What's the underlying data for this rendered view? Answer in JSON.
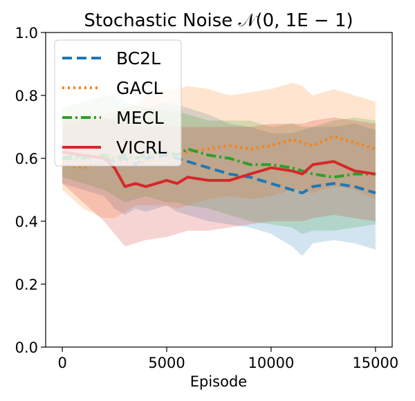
{
  "chart_data": {
    "type": "line",
    "title": "Stochastic Noise 𝒩(0, 1E − 1)",
    "xlabel": "Episode",
    "ylabel": "",
    "xlim": [
      -800,
      15800
    ],
    "ylim": [
      0.0,
      1.0
    ],
    "xticks": [
      0,
      5000,
      10000,
      15000
    ],
    "xtick_labels": [
      "0",
      "5000",
      "10000",
      "15000"
    ],
    "yticks": [
      0.0,
      0.2,
      0.4,
      0.6,
      0.8,
      1.0
    ],
    "ytick_labels": [
      "0.0",
      "0.2",
      "0.4",
      "0.6",
      "0.8",
      "1.0"
    ],
    "grid": false,
    "legend_position": "top-left",
    "x": [
      0,
      1000,
      2000,
      2500,
      3000,
      3500,
      4000,
      5000,
      5500,
      6000,
      7000,
      8000,
      9000,
      10000,
      11000,
      11500,
      12000,
      13000,
      14000,
      15000
    ],
    "series": [
      {
        "name": "BC2L",
        "color": "#1f77b4",
        "dash": "dashed",
        "values": [
          0.6,
          0.61,
          0.6,
          0.59,
          0.6,
          0.58,
          0.6,
          0.61,
          0.6,
          0.59,
          0.57,
          0.55,
          0.54,
          0.52,
          0.5,
          0.49,
          0.51,
          0.52,
          0.51,
          0.49
        ],
        "band_lower": [
          0.52,
          0.5,
          0.48,
          0.44,
          0.42,
          0.44,
          0.43,
          0.45,
          0.43,
          0.42,
          0.4,
          0.39,
          0.38,
          0.36,
          0.32,
          0.29,
          0.33,
          0.34,
          0.33,
          0.31
        ],
        "band_upper": [
          0.7,
          0.72,
          0.72,
          0.73,
          0.75,
          0.74,
          0.76,
          0.78,
          0.77,
          0.76,
          0.74,
          0.71,
          0.7,
          0.68,
          0.68,
          0.69,
          0.7,
          0.7,
          0.71,
          0.69
        ]
      },
      {
        "name": "GACL",
        "color": "#ff7f0e",
        "dash": "dotted",
        "values": [
          0.58,
          0.57,
          0.59,
          0.6,
          0.59,
          0.58,
          0.59,
          0.6,
          0.61,
          0.62,
          0.63,
          0.64,
          0.63,
          0.64,
          0.66,
          0.65,
          0.64,
          0.67,
          0.65,
          0.63
        ],
        "band_lower": [
          0.5,
          0.44,
          0.41,
          0.41,
          0.43,
          0.45,
          0.45,
          0.45,
          0.44,
          0.45,
          0.47,
          0.48,
          0.47,
          0.48,
          0.5,
          0.5,
          0.49,
          0.51,
          0.5,
          0.47
        ],
        "band_upper": [
          0.72,
          0.74,
          0.74,
          0.75,
          0.76,
          0.77,
          0.8,
          0.82,
          0.82,
          0.83,
          0.82,
          0.8,
          0.81,
          0.82,
          0.84,
          0.83,
          0.8,
          0.82,
          0.8,
          0.78
        ]
      },
      {
        "name": "MECL",
        "color": "#2ca02c",
        "dash": "dashdot",
        "values": [
          0.6,
          0.6,
          0.61,
          0.6,
          0.61,
          0.6,
          0.61,
          0.62,
          0.61,
          0.63,
          0.61,
          0.6,
          0.58,
          0.58,
          0.57,
          0.56,
          0.55,
          0.54,
          0.55,
          0.55
        ],
        "band_lower": [
          0.54,
          0.52,
          0.5,
          0.48,
          0.46,
          0.47,
          0.48,
          0.46,
          0.46,
          0.45,
          0.44,
          0.42,
          0.4,
          0.39,
          0.38,
          0.36,
          0.37,
          0.37,
          0.38,
          0.39
        ],
        "band_upper": [
          0.76,
          0.78,
          0.8,
          0.8,
          0.78,
          0.77,
          0.76,
          0.75,
          0.75,
          0.74,
          0.72,
          0.72,
          0.72,
          0.7,
          0.71,
          0.7,
          0.7,
          0.72,
          0.73,
          0.72
        ]
      },
      {
        "name": "VICRL",
        "color": "#d62728",
        "dash": "solid",
        "values": [
          0.62,
          0.61,
          0.6,
          0.57,
          0.51,
          0.52,
          0.51,
          0.53,
          0.52,
          0.54,
          0.53,
          0.53,
          0.55,
          0.57,
          0.56,
          0.55,
          0.58,
          0.59,
          0.56,
          0.55
        ],
        "band_lower": [
          0.52,
          0.46,
          0.4,
          0.36,
          0.32,
          0.33,
          0.34,
          0.35,
          0.36,
          0.37,
          0.37,
          0.38,
          0.39,
          0.4,
          0.4,
          0.4,
          0.41,
          0.42,
          0.41,
          0.4
        ],
        "band_upper": [
          0.72,
          0.73,
          0.73,
          0.72,
          0.71,
          0.7,
          0.7,
          0.7,
          0.7,
          0.7,
          0.7,
          0.7,
          0.7,
          0.71,
          0.71,
          0.71,
          0.72,
          0.73,
          0.72,
          0.71
        ]
      }
    ]
  }
}
